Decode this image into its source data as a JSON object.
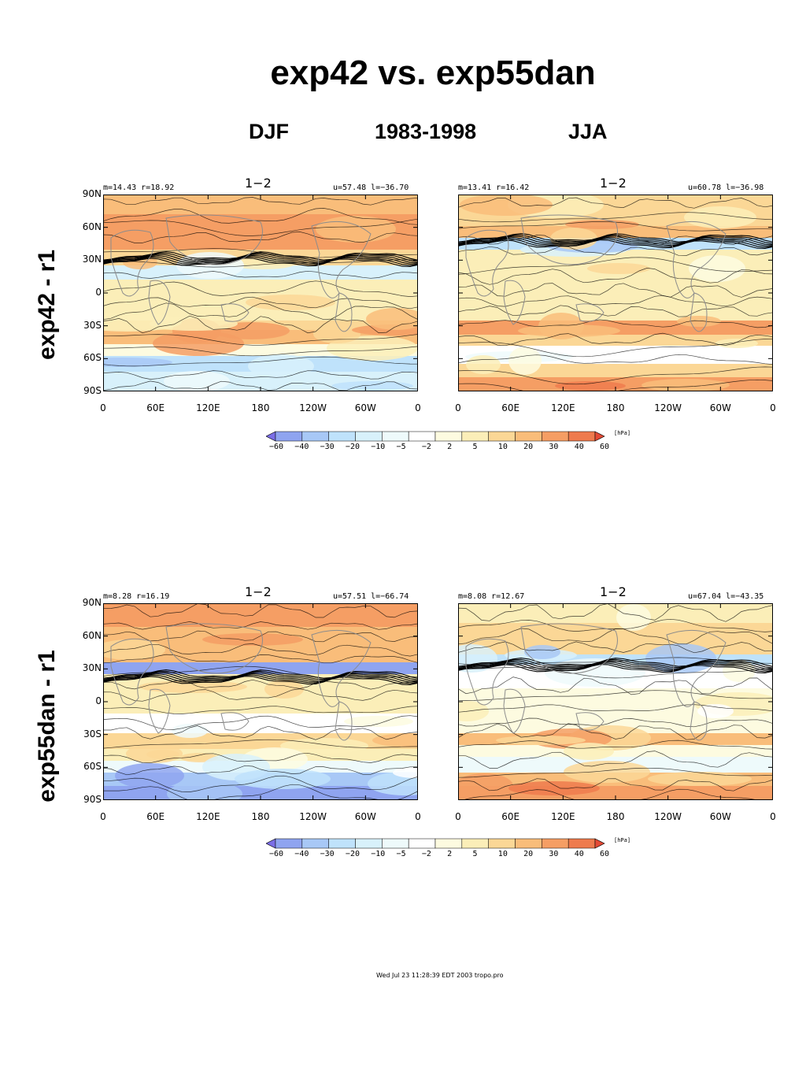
{
  "title": "exp42 vs. exp55dan",
  "subtitle": {
    "left": "DJF",
    "center": "1983-1998",
    "right": "JJA"
  },
  "rows": [
    {
      "label": "exp42 - r1",
      "panels": [
        {
          "stats_left": "m=14.43 r=18.92",
          "title": "1−2",
          "stats_right": "u=57.48 l=−36.70"
        },
        {
          "stats_left": "m=13.41 r=16.42",
          "title": "1−2",
          "stats_right": "u=60.78 l=−36.98"
        }
      ]
    },
    {
      "label": "exp55dan - r1",
      "panels": [
        {
          "stats_left": "m=8.28 r=16.19",
          "title": "1−2",
          "stats_right": "u=57.51 l=−66.74"
        },
        {
          "stats_left": "m=8.08 r=12.67",
          "title": "1−2",
          "stats_right": "u=67.04 l=−43.35"
        }
      ]
    }
  ],
  "lat_labels": [
    "90N",
    "60N",
    "30N",
    "0",
    "30S",
    "60S",
    "90S"
  ],
  "lon_labels": [
    "0",
    "60E",
    "120E",
    "180",
    "120W",
    "60W",
    "0"
  ],
  "colorbar": {
    "unit": "[hPa]",
    "ticks": [
      "−60",
      "−40",
      "−30",
      "−20",
      "−10",
      "−5",
      "−2",
      "2",
      "5",
      "10",
      "20",
      "30",
      "40",
      "60"
    ],
    "colors": [
      "#7b6ee6",
      "#8fa4f0",
      "#a8c8f6",
      "#bfe2fb",
      "#d8f1fb",
      "#eefafb",
      "#ffffff",
      "#fdfbe0",
      "#fbeeb8",
      "#fbd796",
      "#f9bd7a",
      "#f59e64",
      "#ee7b4e",
      "#e34a35"
    ]
  },
  "footer": "Wed Jul 23 11:28:39 EDT 2003 tropo.pro"
}
